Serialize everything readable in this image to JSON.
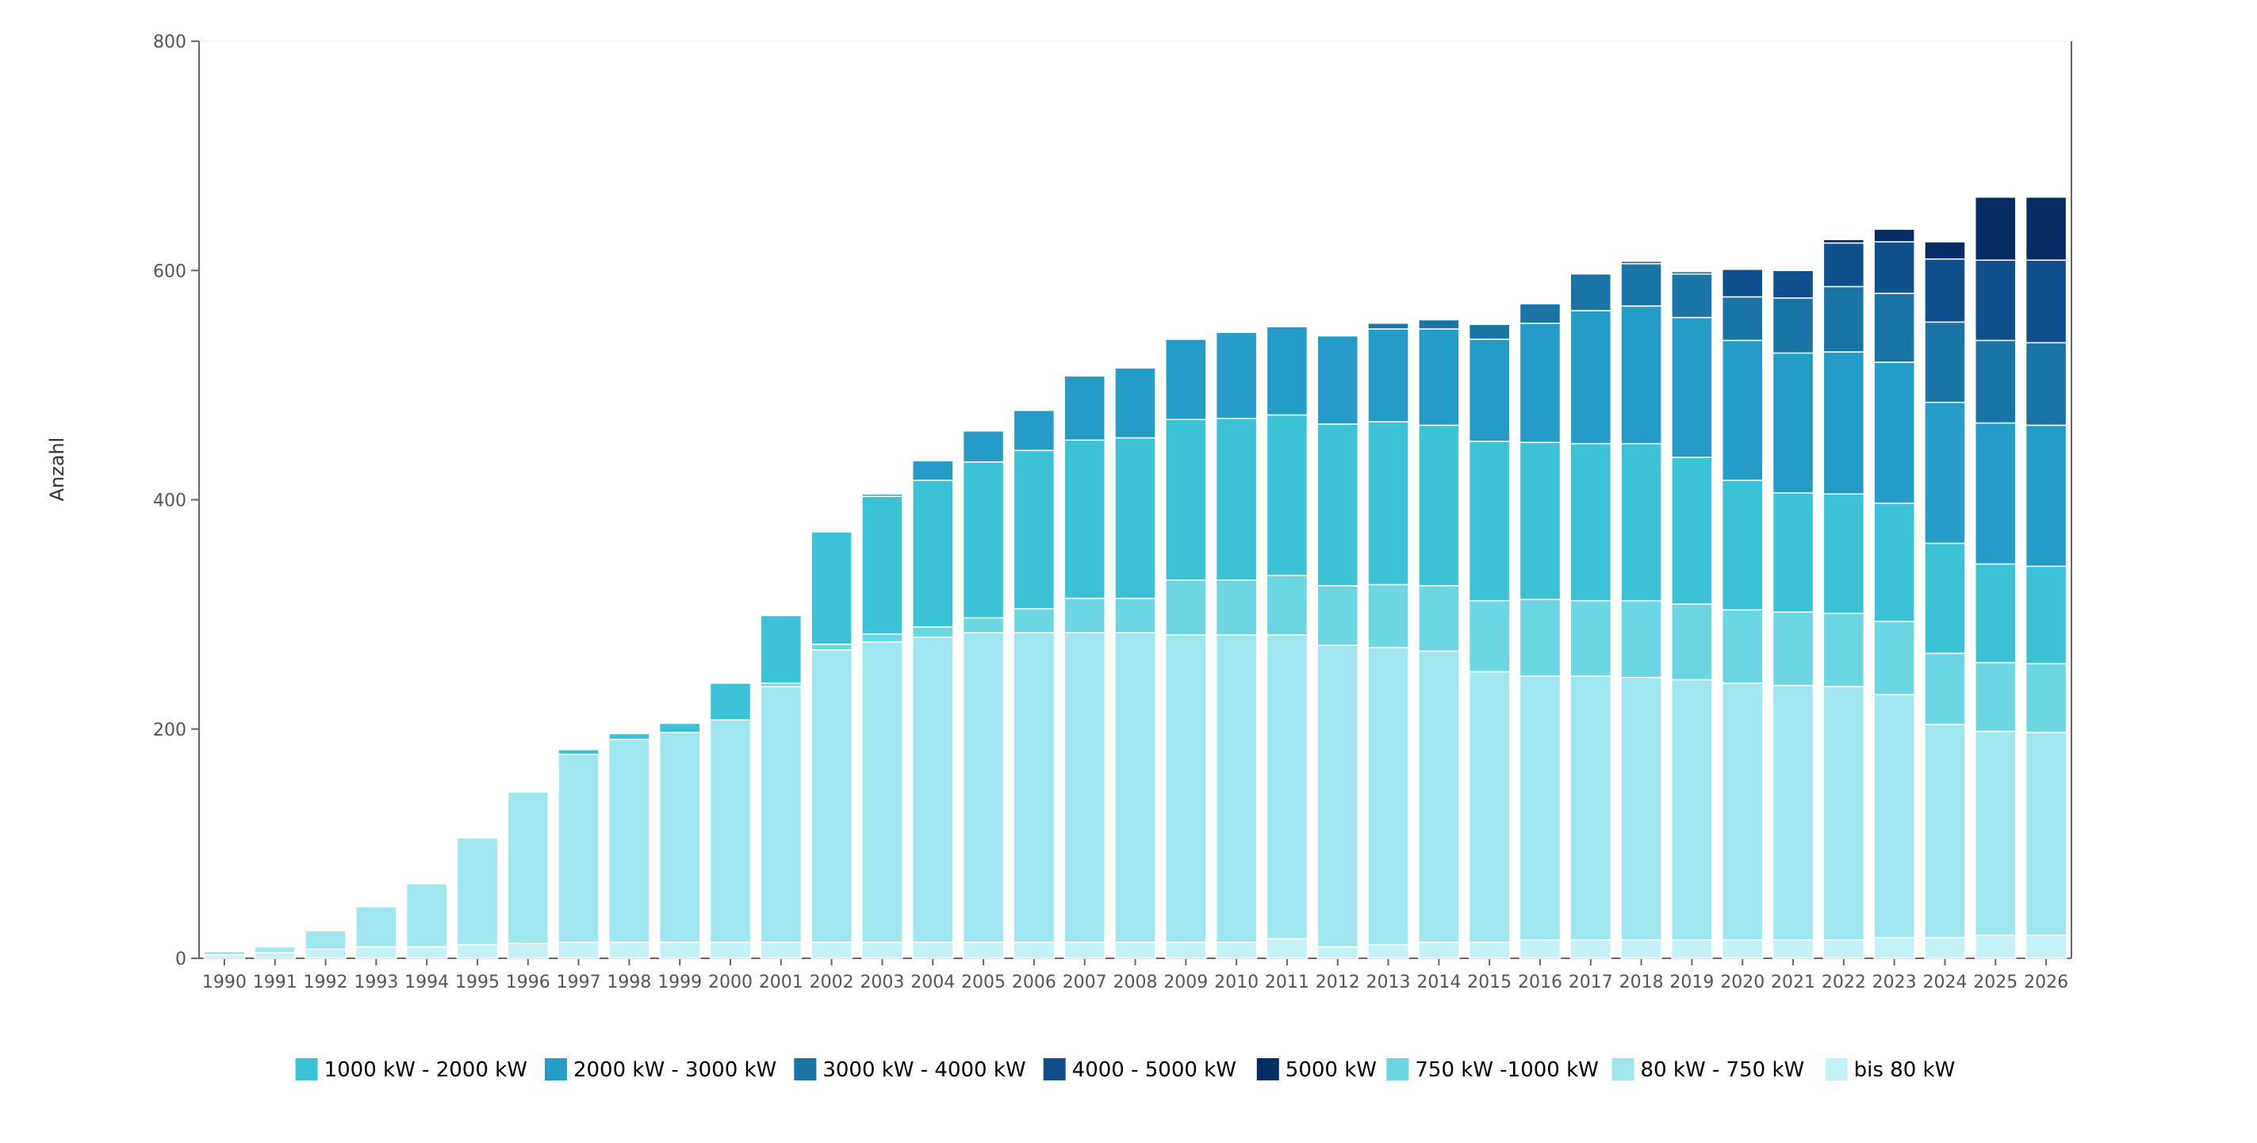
{
  "chart_data": {
    "type": "bar",
    "stacked": true,
    "title": "",
    "xlabel": "",
    "ylabel": "Anzahl",
    "ylim": [
      0,
      800
    ],
    "yticks": [
      0,
      200,
      400,
      600,
      800
    ],
    "legend_position": "bottom",
    "grid": false,
    "categories": [
      "1990",
      "1991",
      "1992",
      "1993",
      "1994",
      "1995",
      "1996",
      "1997",
      "1998",
      "1999",
      "2000",
      "2001",
      "2002",
      "2003",
      "2004",
      "2005",
      "2006",
      "2007",
      "2008",
      "2009",
      "2010",
      "2011",
      "2012",
      "2013",
      "2014",
      "2015",
      "2016",
      "2017",
      "2018",
      "2019",
      "2020",
      "2021",
      "2022",
      "2023",
      "2024",
      "2025",
      "2026"
    ],
    "series": [
      {
        "name": "bis 80 kW",
        "color": "#c4f1f6",
        "values": [
          3,
          5,
          8,
          10,
          10,
          12,
          13,
          14,
          14,
          14,
          14,
          14,
          14,
          14,
          14,
          14,
          14,
          14,
          14,
          14,
          14,
          17,
          10,
          12,
          14,
          14,
          16,
          16,
          16,
          16,
          16,
          16,
          16,
          18,
          18,
          20,
          20
        ]
      },
      {
        "name": "80 kW - 750 kW",
        "color": "#9fe6ee",
        "values": [
          3,
          5,
          16,
          35,
          55,
          93,
          132,
          164,
          177,
          183,
          194,
          223,
          255,
          262,
          266,
          270,
          270,
          270,
          270,
          268,
          268,
          265,
          263,
          259,
          254,
          236,
          230,
          230,
          229,
          227,
          224,
          222,
          221,
          212,
          186,
          178,
          177
        ]
      },
      {
        "name": "750 kW -1000 kW",
        "color": "#6dd6e3",
        "values": [
          0,
          0,
          0,
          0,
          0,
          0,
          1,
          0,
          0,
          0,
          0,
          3,
          5,
          7,
          9,
          13,
          21,
          30,
          30,
          48,
          48,
          52,
          52,
          55,
          57,
          62,
          67,
          66,
          67,
          66,
          64,
          64,
          64,
          64,
          62,
          60,
          60
        ]
      },
      {
        "name": "1000 kW - 2000 kW",
        "color": "#3cc2d7",
        "values": [
          0,
          0,
          0,
          0,
          0,
          1,
          1,
          4,
          5,
          8,
          32,
          59,
          98,
          120,
          128,
          136,
          138,
          138,
          140,
          140,
          141,
          140,
          141,
          142,
          140,
          139,
          137,
          137,
          137,
          128,
          113,
          104,
          104,
          103,
          96,
          86,
          85
        ]
      },
      {
        "name": "2000 kW - 3000 kW",
        "color": "#259cc8",
        "values": [
          0,
          0,
          0,
          0,
          0,
          0,
          0,
          0,
          0,
          0,
          0,
          0,
          0,
          2,
          17,
          27,
          35,
          56,
          61,
          70,
          75,
          77,
          77,
          81,
          84,
          89,
          104,
          116,
          120,
          122,
          122,
          122,
          124,
          123,
          123,
          123,
          123
        ]
      },
      {
        "name": "3000 kW - 4000 kW",
        "color": "#1a75a6",
        "values": [
          0,
          0,
          0,
          0,
          0,
          0,
          0,
          0,
          0,
          0,
          0,
          0,
          0,
          0,
          0,
          0,
          0,
          0,
          0,
          0,
          0,
          0,
          0,
          5,
          8,
          13,
          17,
          32,
          37,
          38,
          38,
          48,
          57,
          60,
          70,
          72,
          72
        ]
      },
      {
        "name": "4000 - 5000 kW",
        "color": "#0f4f8c",
        "values": [
          0,
          0,
          0,
          0,
          0,
          0,
          0,
          0,
          0,
          0,
          0,
          0,
          0,
          0,
          0,
          0,
          0,
          0,
          0,
          0,
          0,
          0,
          0,
          0,
          0,
          0,
          0,
          0,
          2,
          2,
          24,
          24,
          38,
          45,
          55,
          70,
          72
        ]
      },
      {
        "name": "5000 kW",
        "color": "#062d63",
        "values": [
          0,
          0,
          0,
          0,
          0,
          0,
          0,
          0,
          0,
          0,
          0,
          0,
          0,
          0,
          0,
          0,
          0,
          0,
          0,
          0,
          0,
          0,
          0,
          0,
          0,
          0,
          0,
          0,
          0,
          0,
          0,
          0,
          3,
          11,
          15,
          55,
          55
        ]
      }
    ],
    "legend_order": [
      "1000 kW - 2000 kW",
      "2000 kW - 3000 kW",
      "3000 kW - 4000 kW",
      "4000 - 5000 kW",
      "5000 kW",
      "750 kW -1000 kW",
      "80 kW - 750 kW",
      "bis 80 kW"
    ]
  }
}
